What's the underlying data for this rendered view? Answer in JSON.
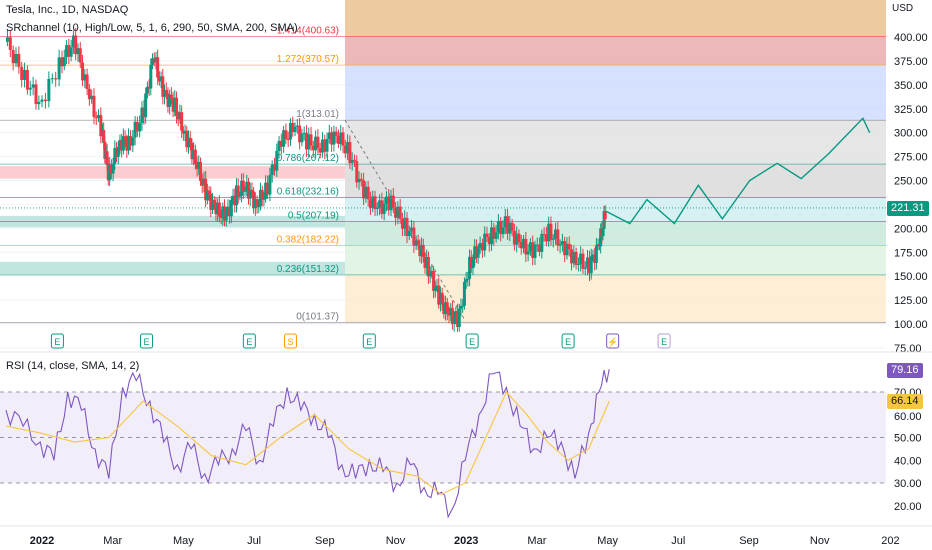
{
  "header": {
    "symbol_line": "Tesla, Inc., 1D, NASDAQ",
    "indicator_line": "SRchannel (10, High/Low, 5, 1, 6, 290, 50, SMA, 200, SMA)",
    "rsi_line": "RSI (14, close, SMA, 14, 2)"
  },
  "currency": "USD",
  "chart_data": [
    {
      "type": "candlestick",
      "title": "Tesla, Inc., 1D, NASDAQ",
      "ylabel": "USD",
      "ylim": [
        75,
        440
      ],
      "y_ticks": [
        75,
        100,
        125,
        150,
        175,
        200,
        225,
        250,
        275,
        300,
        325,
        350,
        375,
        400
      ],
      "x_tick_labels": [
        "2022",
        "Mar",
        "May",
        "Jul",
        "Sep",
        "Nov",
        "2023",
        "Mar",
        "May",
        "Jul",
        "Sep",
        "Nov",
        "202"
      ],
      "last_price": "221.31",
      "price_path": {
        "t": [
          0,
          0.5,
          1,
          1.6,
          2,
          2.4,
          2.8,
          3,
          3.3,
          3.6,
          4,
          4.3,
          4.6,
          4.9,
          5.2,
          5.5,
          5.8,
          6.1,
          6.4,
          6.7,
          7,
          7.3,
          7.6,
          8,
          8.4,
          8.8,
          9.2,
          9.6,
          10,
          10.4,
          10.8,
          11.2,
          11.6,
          12,
          12.3,
          12.6,
          12.9,
          13.2,
          13.5,
          13.8,
          14.2,
          14.6,
          15,
          15.4,
          15.8,
          16.2,
          16.6,
          17,
          17.3,
          17.5
        ],
        "close": [
          395,
          360,
          330,
          375,
          395,
          340,
          300,
          255,
          290,
          290,
          320,
          380,
          340,
          330,
          300,
          275,
          240,
          220,
          212,
          235,
          245,
          225,
          240,
          290,
          305,
          290,
          285,
          300,
          280,
          240,
          220,
          228,
          205,
          185,
          160,
          130,
          110,
          104,
          160,
          182,
          195,
          205,
          182,
          175,
          197,
          185,
          168,
          160,
          182,
          218
        ]
      },
      "fibonacci_levels": [
        {
          "ratio": "1.414",
          "value": 400.63,
          "label": "1.414(400.63)"
        },
        {
          "ratio": "1.272",
          "value": 370.57,
          "label": "1.272(370.57)"
        },
        {
          "ratio": "1",
          "value": 313.01,
          "label": "1(313.01)"
        },
        {
          "ratio": "0.786",
          "value": 267.12,
          "label": "0.786(267.12)"
        },
        {
          "ratio": "0.618",
          "value": 232.16,
          "label": "0.618(232.16)"
        },
        {
          "ratio": "0.5",
          "value": 207.19,
          "label": "0.5(207.19)"
        },
        {
          "ratio": "0.382",
          "value": 182.22,
          "label": "0.382(182.22)"
        },
        {
          "ratio": "0.236",
          "value": 151.32,
          "label": "0.236(151.32)"
        },
        {
          "ratio": "0",
          "value": 101.37,
          "label": "0(101.37)"
        }
      ],
      "fib_colors": [
        "#f23645",
        "#ff9800",
        "#787b86",
        "#089981",
        "#089981",
        "#089981",
        "#ff9800",
        "#089981",
        "#787b86"
      ],
      "sr_zones": [
        {
          "low": 252,
          "high": 265,
          "color": "#f23645"
        },
        {
          "low": 201,
          "high": 213,
          "color": "#089981"
        },
        {
          "low": 152,
          "high": 165,
          "color": "#089981"
        }
      ],
      "projection_path": [
        [
          18.2,
          205
        ],
        [
          18.7,
          230
        ],
        [
          19.5,
          205
        ],
        [
          20.2,
          245
        ],
        [
          20.9,
          210
        ],
        [
          21.7,
          250
        ],
        [
          22.5,
          268
        ],
        [
          23.2,
          252
        ],
        [
          24,
          278
        ],
        [
          25,
          315
        ],
        [
          25.2,
          300
        ]
      ],
      "earnings_markers": [
        {
          "t": 1.5,
          "label": "E"
        },
        {
          "t": 4.1,
          "label": "E"
        },
        {
          "t": 7.1,
          "label": "E"
        },
        {
          "t": 8.3,
          "label": "S"
        },
        {
          "t": 10.6,
          "label": "E"
        },
        {
          "t": 13.6,
          "label": "E"
        },
        {
          "t": 16.4,
          "label": "E"
        },
        {
          "t": 17.7,
          "label": "⚡"
        },
        {
          "t": 19.2,
          "label": "E"
        }
      ]
    },
    {
      "type": "line",
      "title": "RSI (14, close, SMA, 14, 2)",
      "ylim": [
        15,
        85
      ],
      "y_ticks": [
        20,
        30,
        40,
        50,
        60,
        70
      ],
      "bands": [
        30,
        50,
        70
      ],
      "current_rsi": "79.16",
      "current_sma": "66.14",
      "series": [
        {
          "color": "#7e57c2",
          "t": [
            0,
            0.5,
            1,
            1.4,
            1.8,
            2.2,
            2.6,
            3,
            3.4,
            3.8,
            4.2,
            4.6,
            5,
            5.4,
            5.8,
            6.2,
            6.6,
            7,
            7.4,
            7.8,
            8.2,
            8.6,
            9,
            9.4,
            9.8,
            10.2,
            10.6,
            11,
            11.4,
            11.8,
            12.2,
            12.6,
            13,
            13.4,
            13.8,
            14.2,
            14.6,
            15,
            15.4,
            15.8,
            16.2,
            16.6,
            17,
            17.3,
            17.6
          ],
          "values": [
            62,
            55,
            48,
            40,
            70,
            62,
            45,
            32,
            72,
            75,
            66,
            48,
            38,
            45,
            34,
            38,
            45,
            53,
            40,
            55,
            72,
            62,
            60,
            50,
            38,
            32,
            40,
            35,
            30,
            38,
            28,
            25,
            18,
            40,
            60,
            78,
            72,
            55,
            45,
            50,
            48,
            32,
            52,
            70,
            80
          ]
        },
        {
          "color": "#f7c543",
          "t": [
            0,
            1,
            2,
            3,
            4,
            5,
            6,
            7,
            8,
            9,
            10,
            11,
            12,
            12.7,
            13.4,
            14,
            14.6,
            15.2,
            15.8,
            16.4,
            17,
            17.6
          ],
          "values": [
            55,
            52,
            48,
            50,
            66,
            55,
            42,
            38,
            50,
            60,
            45,
            36,
            33,
            25,
            30,
            50,
            70,
            60,
            48,
            40,
            45,
            66
          ]
        }
      ]
    }
  ]
}
